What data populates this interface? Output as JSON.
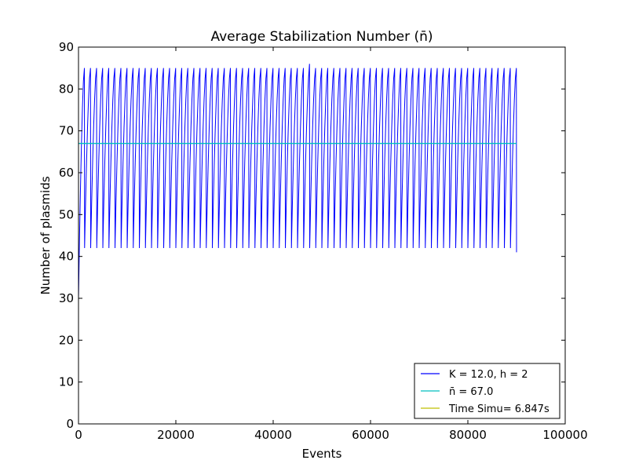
{
  "chart_data": {
    "type": "line",
    "title": "Average Stabilization Number (n̄)",
    "xlabel": "Events",
    "ylabel": "Number of plasmids",
    "xlim": [
      0,
      100000
    ],
    "ylim": [
      0,
      90
    ],
    "x_ticks": [
      "0",
      "20000",
      "40000",
      "60000",
      "80000",
      "100000"
    ],
    "y_ticks": [
      "0",
      "10",
      "20",
      "30",
      "40",
      "50",
      "60",
      "70",
      "80",
      "90"
    ],
    "grid": false,
    "legend_position": "lower-right",
    "series": [
      {
        "name": "K = 12.0, h = 2",
        "color": "#0000ff",
        "pattern": "sawtooth",
        "x_start": 0,
        "x_end": 90000,
        "start_value": 30,
        "low": 42,
        "high": 85,
        "peak_max": 86,
        "end_value": 41,
        "cycles": 72
      },
      {
        "name": "n̄ = 67.0",
        "color": "#00bfbf",
        "x": [
          0,
          90000
        ],
        "values": [
          67,
          67
        ]
      },
      {
        "name": "Time Simu= 6.847s",
        "color": "#bfbf00",
        "x": [],
        "values": []
      }
    ]
  }
}
